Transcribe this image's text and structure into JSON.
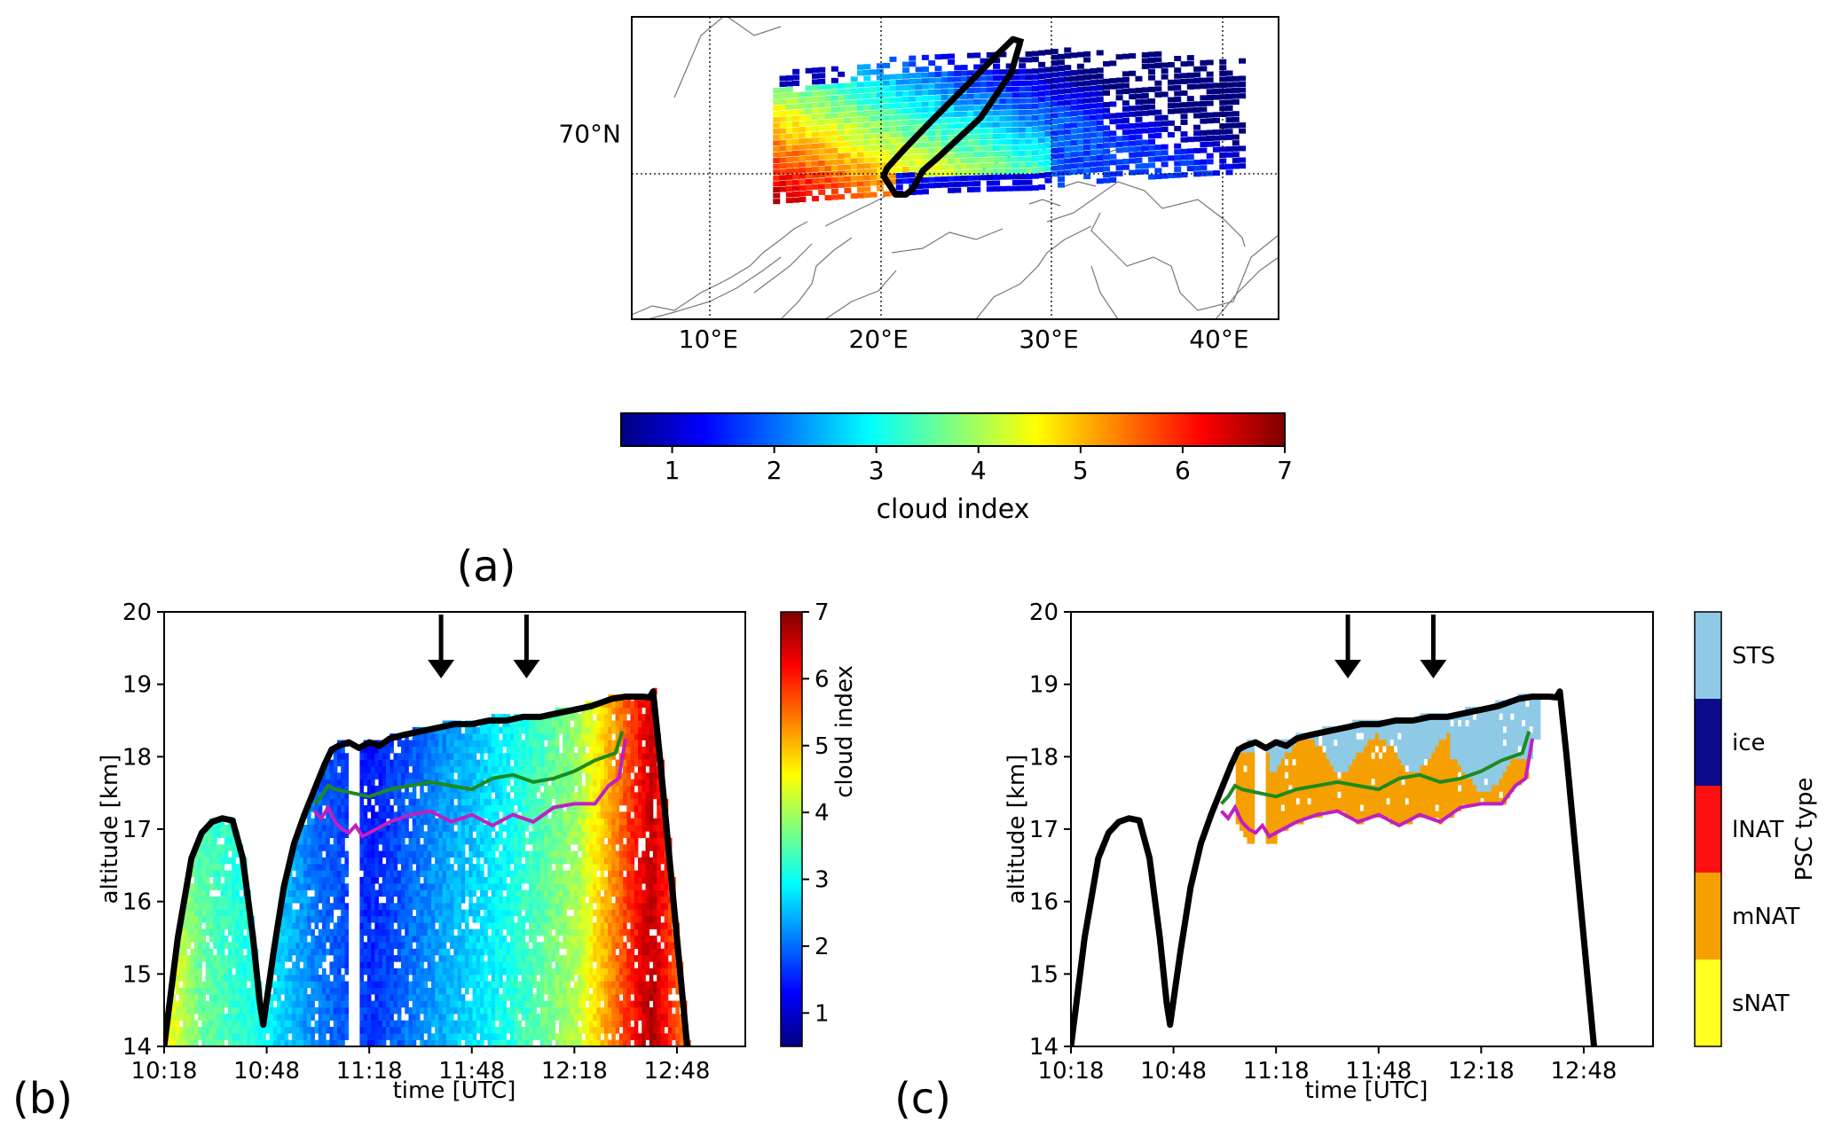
{
  "panel_labels": {
    "a": "(a)",
    "b": "(b)",
    "c": "(c)"
  },
  "colors": {
    "jet": [
      "#00007f",
      "#0000ff",
      "#007fff",
      "#00ffff",
      "#7fff7f",
      "#ffff00",
      "#ff7f00",
      "#ff0000",
      "#7f0000"
    ],
    "green_line": "#1e8a1e",
    "magenta_line": "#c020c0",
    "flight_track": "#000000",
    "psc": {
      "STS": "#8ecae6",
      "ice": "#0a0a8a",
      "lNAT": "#ff1010",
      "mNAT": "#f5a000",
      "sNAT": "#ffff20"
    }
  },
  "chart_data": [
    {
      "id": "a",
      "type": "heatmap",
      "subtype": "map",
      "lon_ticks": [
        "10°E",
        "20°E",
        "30°E",
        "40°E"
      ],
      "lon_values": [
        10,
        20,
        30,
        40
      ],
      "lat_ticks": [
        "70°N"
      ],
      "lat_values": [
        70
      ],
      "lon_range": [
        5.5,
        43.5
      ],
      "lat_range": [
        66.5,
        72.2
      ],
      "grid": "dotted",
      "flight_track_lonlat": [
        [
          28.3,
          71.7
        ],
        [
          27.8,
          71.15
        ],
        [
          26.0,
          70.3
        ],
        [
          24.5,
          69.85
        ],
        [
          23.5,
          69.55
        ],
        [
          22.6,
          69.3
        ],
        [
          22.0,
          68.95
        ],
        [
          21.6,
          68.85
        ],
        [
          21.0,
          68.85
        ],
        [
          20.3,
          69.2
        ],
        [
          20.5,
          69.35
        ],
        [
          21.5,
          69.7
        ],
        [
          23.0,
          70.2
        ],
        [
          25.0,
          70.85
        ],
        [
          27.0,
          71.5
        ],
        [
          27.9,
          71.78
        ],
        [
          28.5,
          71.72
        ]
      ]
    },
    {
      "id": "colorbar-a",
      "type": "colorbar",
      "orientation": "horizontal",
      "range": [
        0.5,
        7
      ],
      "ticks": [
        "1",
        "2",
        "3",
        "4",
        "5",
        "6",
        "7"
      ],
      "tick_values": [
        1,
        2,
        3,
        4,
        5,
        6,
        7
      ],
      "label": "cloud index",
      "colormap": "jet"
    },
    {
      "id": "b",
      "type": "heatmap",
      "xlabel": "time [UTC]",
      "ylabel": "altitude [km]",
      "xticks": [
        "10:18",
        "10:48",
        "11:18",
        "11:48",
        "12:18",
        "12:48"
      ],
      "xtick_values": [
        0,
        30,
        60,
        90,
        120,
        150
      ],
      "xlim": [
        0,
        170
      ],
      "yticks": [
        "14",
        "15",
        "16",
        "17",
        "18",
        "19",
        "20"
      ],
      "ylim": [
        14,
        20
      ],
      "colorbar": {
        "label": "cloud index",
        "ticks": [
          "1",
          "2",
          "3",
          "4",
          "5",
          "6",
          "7"
        ],
        "range": [
          0.5,
          7
        ]
      },
      "arrows_at_min": [
        81,
        106
      ],
      "flight_altitude": [
        [
          0,
          14.0
        ],
        [
          4,
          15.5
        ],
        [
          8,
          16.6
        ],
        [
          11,
          16.95
        ],
        [
          14,
          17.1
        ],
        [
          17,
          17.15
        ],
        [
          20,
          17.12
        ],
        [
          23,
          16.6
        ],
        [
          26,
          15.5
        ],
        [
          28,
          14.6
        ],
        [
          29,
          14.3
        ],
        [
          32,
          15.3
        ],
        [
          35,
          16.2
        ],
        [
          38,
          16.8
        ],
        [
          41,
          17.2
        ],
        [
          44,
          17.55
        ],
        [
          47,
          17.9
        ],
        [
          49,
          18.1
        ],
        [
          51,
          18.15
        ],
        [
          54,
          18.2
        ],
        [
          57,
          18.12
        ],
        [
          60,
          18.2
        ],
        [
          63,
          18.15
        ],
        [
          66,
          18.25
        ],
        [
          70,
          18.3
        ],
        [
          75,
          18.35
        ],
        [
          80,
          18.4
        ],
        [
          85,
          18.45
        ],
        [
          90,
          18.45
        ],
        [
          95,
          18.5
        ],
        [
          100,
          18.5
        ],
        [
          105,
          18.55
        ],
        [
          110,
          18.55
        ],
        [
          115,
          18.6
        ],
        [
          120,
          18.65
        ],
        [
          125,
          18.7
        ],
        [
          128,
          18.75
        ],
        [
          131,
          18.8
        ],
        [
          135,
          18.83
        ],
        [
          140,
          18.83
        ],
        [
          142,
          18.82
        ],
        [
          143,
          18.9
        ],
        [
          145,
          18.0
        ],
        [
          147,
          17.0
        ],
        [
          149,
          16.0
        ],
        [
          151,
          15.0
        ],
        [
          153,
          14.0
        ]
      ],
      "cloud_index_profile": [
        [
          0,
          4.5
        ],
        [
          10,
          3.5
        ],
        [
          25,
          3.0
        ],
        [
          45,
          2.0
        ],
        [
          60,
          1.5
        ],
        [
          80,
          2.3
        ],
        [
          100,
          3.0
        ],
        [
          120,
          4.0
        ],
        [
          135,
          5.8
        ],
        [
          142,
          6.6
        ],
        [
          150,
          5.5
        ]
      ],
      "green_line": [
        [
          44,
          17.35
        ],
        [
          46,
          17.45
        ],
        [
          48,
          17.6
        ],
        [
          50,
          17.55
        ],
        [
          60,
          17.45
        ],
        [
          66,
          17.55
        ],
        [
          72,
          17.6
        ],
        [
          78,
          17.65
        ],
        [
          84,
          17.6
        ],
        [
          90,
          17.55
        ],
        [
          96,
          17.7
        ],
        [
          102,
          17.75
        ],
        [
          108,
          17.65
        ],
        [
          114,
          17.7
        ],
        [
          120,
          17.8
        ],
        [
          126,
          17.95
        ],
        [
          132,
          18.05
        ],
        [
          134,
          18.35
        ]
      ],
      "magenta_line": [
        [
          44,
          17.25
        ],
        [
          46,
          17.15
        ],
        [
          48,
          17.3
        ],
        [
          50,
          17.1
        ],
        [
          52,
          17.0
        ],
        [
          54,
          16.95
        ],
        [
          56,
          17.05
        ],
        [
          58,
          16.9
        ],
        [
          66,
          17.1
        ],
        [
          72,
          17.2
        ],
        [
          78,
          17.25
        ],
        [
          84,
          17.1
        ],
        [
          90,
          17.2
        ],
        [
          96,
          17.05
        ],
        [
          102,
          17.2
        ],
        [
          108,
          17.1
        ],
        [
          114,
          17.3
        ],
        [
          120,
          17.35
        ],
        [
          126,
          17.35
        ],
        [
          130,
          17.6
        ],
        [
          133,
          17.7
        ],
        [
          135,
          18.25
        ]
      ]
    },
    {
      "id": "c",
      "type": "heatmap",
      "xlabel": "time [UTC]",
      "ylabel": "altitude [km]",
      "xticks": [
        "10:18",
        "10:48",
        "11:18",
        "11:48",
        "12:18",
        "12:48"
      ],
      "xtick_values": [
        0,
        30,
        60,
        90,
        120,
        150
      ],
      "xlim": [
        0,
        170
      ],
      "yticks": [
        "14",
        "15",
        "16",
        "17",
        "18",
        "19",
        "20"
      ],
      "ylim": [
        14,
        20
      ],
      "colorbar": {
        "label": "PSC type",
        "categories": [
          "STS",
          "ice",
          "lNAT",
          "mNAT",
          "sNAT"
        ]
      },
      "arrows_at_min": [
        81,
        106
      ],
      "psc_regions": [
        {
          "type": "mNAT",
          "t0": 48,
          "t1": 137,
          "alt_low": 17.0,
          "alt_high": 18.1
        },
        {
          "type": "STS",
          "t0": 58,
          "t1": 136,
          "alt_low": 17.9,
          "alt_high": 18.55
        }
      ]
    }
  ]
}
